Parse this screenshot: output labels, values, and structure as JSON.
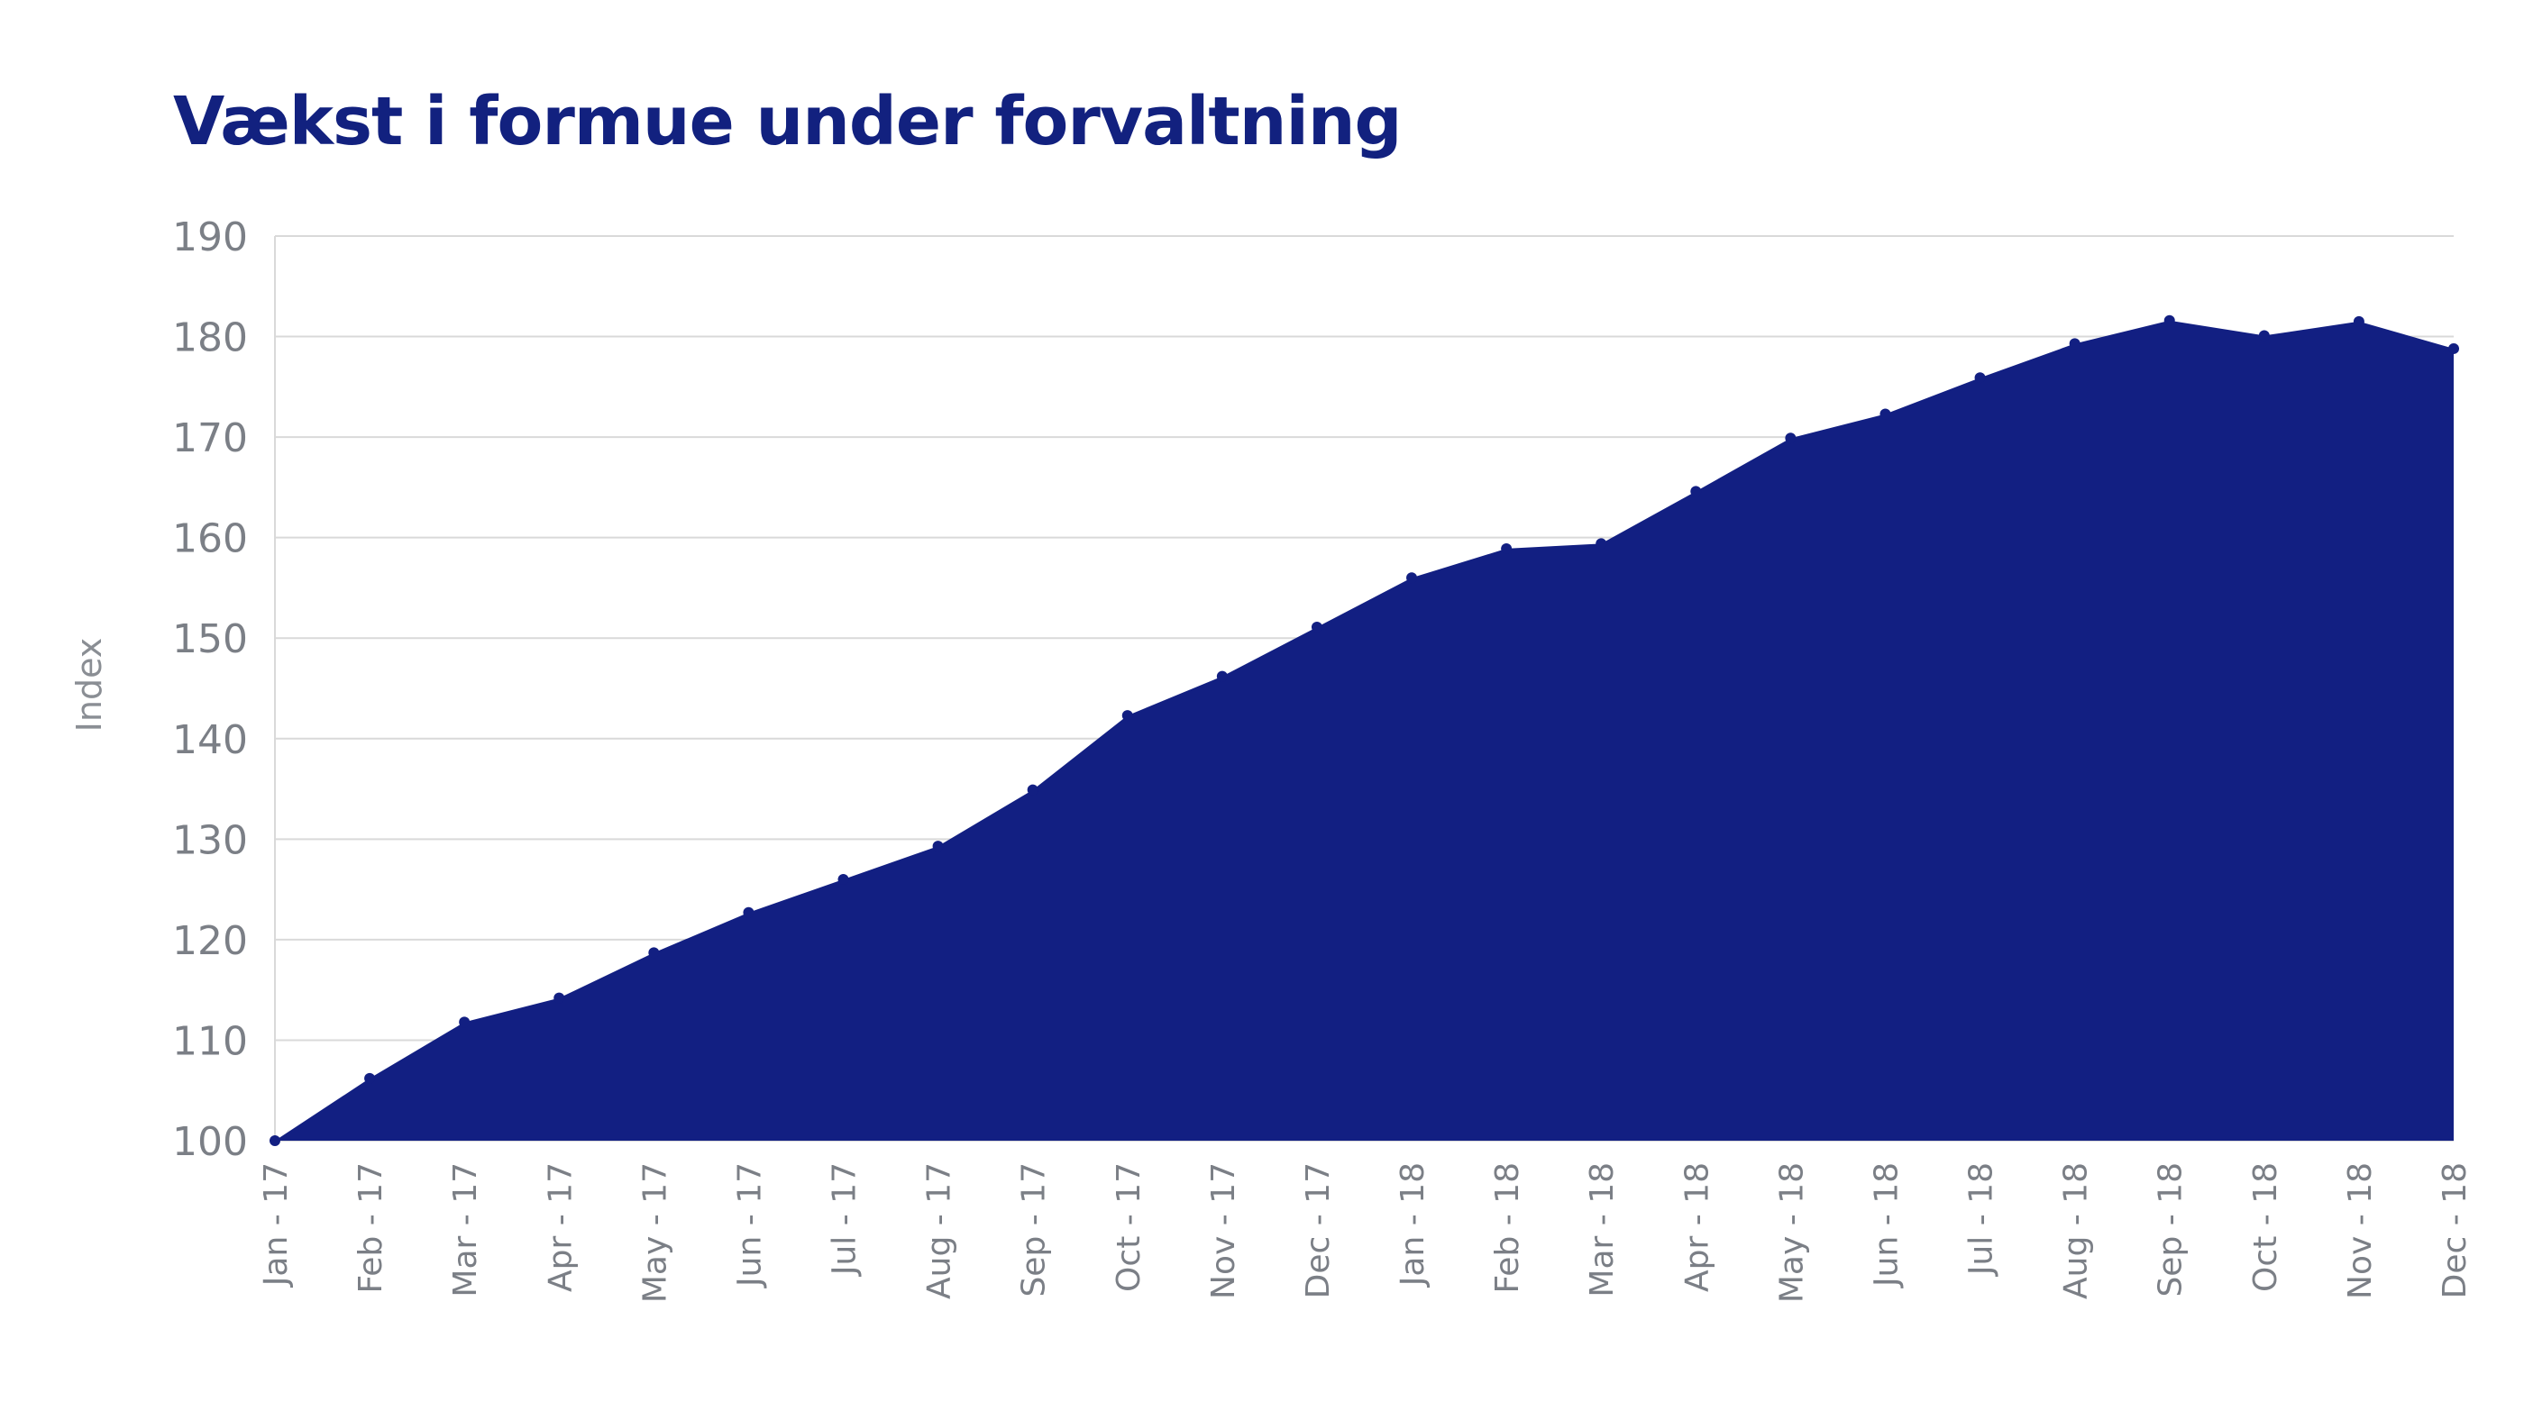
{
  "chart_data": {
    "type": "area",
    "title": "Vækst i formue under forvaltning",
    "xlabel": "",
    "ylabel": "Index",
    "ylim": [
      100,
      190
    ],
    "yticks": [
      "100",
      "110",
      "120",
      "130",
      "140",
      "150",
      "160",
      "170",
      "180",
      "190"
    ],
    "grid": true,
    "categories": [
      "Jan - 17",
      "Feb - 17",
      "Mar - 17",
      "Apr - 17",
      "May - 17",
      "Jun - 17",
      "Jul - 17",
      "Aug - 17",
      "Sep - 17",
      "Oct - 17",
      "Nov - 17",
      "Dec - 17",
      "Jan - 18",
      "Feb - 18",
      "Mar - 18",
      "Apr - 18",
      "May - 18",
      "Jun - 18",
      "Jul - 18",
      "Aug - 18",
      "Sep - 18",
      "Oct - 18",
      "Nov - 18",
      "Dec - 18"
    ],
    "series": [
      {
        "values": [
          100,
          106.2,
          111.8,
          114.2,
          118.7,
          122.7,
          126.0,
          129.3,
          134.9,
          142.3,
          146.2,
          151.1,
          156.0,
          158.9,
          159.4,
          164.6,
          169.9,
          172.3,
          175.9,
          179.3,
          181.6,
          180.1,
          181.5,
          178.8
        ],
        "color": "#121f82"
      }
    ],
    "colors": {
      "area": "#121f82",
      "grid": "#d9d9d9",
      "title": "#12217f",
      "tick_text": "#7b7f86"
    }
  }
}
